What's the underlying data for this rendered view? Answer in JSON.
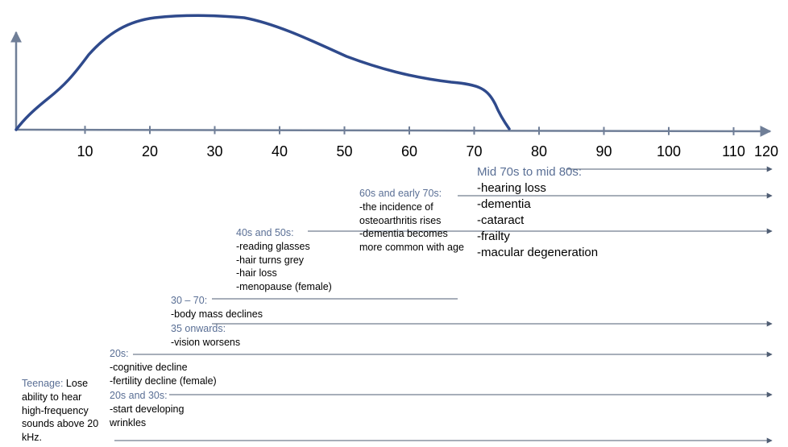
{
  "axis_ticks": [
    "10",
    "20",
    "30",
    "40",
    "50",
    "60",
    "70",
    "80",
    "90",
    "100",
    "110",
    "120"
  ],
  "colors": {
    "curve": "#2f4a8c",
    "axis": "#6f7e97",
    "heading": "#5a6f95",
    "text": "#000000"
  },
  "stages": [
    {
      "id": "teenage",
      "heading": "Teenage:",
      "lines": [
        "Lose",
        "ability to hear",
        "high-frequency",
        "sounds above 20",
        "kHz."
      ]
    },
    {
      "id": "20s-30s",
      "heading": "20s and 30s:",
      "lines": [
        "-start developing",
        "wrinkles"
      ]
    },
    {
      "id": "20s",
      "heading": "20s:",
      "lines": [
        "-cognitive decline",
        "-fertility decline (female)"
      ]
    },
    {
      "id": "35-onwards",
      "heading": "35 onwards:",
      "lines": [
        "-vision worsens"
      ]
    },
    {
      "id": "30-70",
      "heading": "30 – 70:",
      "lines": [
        "-body mass declines"
      ]
    },
    {
      "id": "40s-50s",
      "heading": "40s and 50s:",
      "lines": [
        "-reading glasses",
        "-hair turns grey",
        "-hair loss",
        "-menopause (female)"
      ]
    },
    {
      "id": "60s-early-70s",
      "heading": "60s and early 70s:",
      "lines": [
        "-the incidence of",
        "osteoarthritis rises",
        "-dementia becomes",
        "more common with age"
      ]
    },
    {
      "id": "mid-70s-80s",
      "heading": "Mid 70s to mid 80s:",
      "lines": [
        "-hearing loss",
        "-dementia",
        "-cataract",
        "-frailty",
        "-macular degeneration"
      ]
    }
  ]
}
